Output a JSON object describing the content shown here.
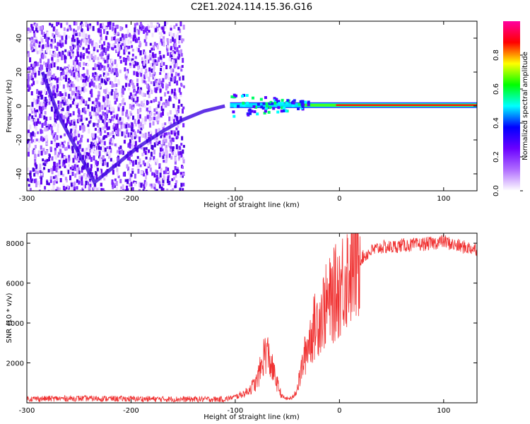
{
  "chart_data": [
    {
      "type": "heatmap",
      "title": "C2E1.2024.114.15.36.G16",
      "xlabel": "Height of straight line (km)",
      "ylabel": "Frequency (Hz)",
      "xlim": [
        -300,
        132
      ],
      "ylim": [
        -50,
        50
      ],
      "xticks": [
        "-300",
        "-200",
        "-100",
        "0",
        "100"
      ],
      "yticks": [
        "-40",
        "-20",
        "0",
        "20",
        "40"
      ],
      "colorbar": {
        "label": "Normalized spectral amplitude",
        "range": [
          0,
          1
        ],
        "ticks": [
          "0.0",
          "0.2",
          "0.4",
          "0.6",
          "0.8"
        ],
        "colors": [
          "#ffffff",
          "#b06cff",
          "#6a00ff",
          "#0000ff",
          "#00ffff",
          "#00ff00",
          "#ffff00",
          "#ff0000",
          "#ff00a0"
        ]
      },
      "features": [
        {
          "name": "carrier",
          "x_range": [
            -105,
            132
          ],
          "frequency": 0.5
        },
        {
          "name": "diagonal streak",
          "x": [
            -285,
            -270,
            -250,
            -235,
            -215,
            -195,
            -170,
            -150,
            -130,
            -110
          ],
          "y": [
            20,
            -5,
            -28,
            -45,
            -35,
            -25,
            -15,
            -8,
            -3,
            0
          ]
        }
      ]
    },
    {
      "type": "line",
      "title": "",
      "xlabel": "Height of straight line (km)",
      "ylabel": "SNR (10 * v/v)",
      "xlim": [
        -300,
        132
      ],
      "ylim": [
        0,
        8500
      ],
      "xticks": [
        "-300",
        "-200",
        "-100",
        "0",
        "100"
      ],
      "yticks": [
        "2000",
        "4000",
        "6000",
        "8000"
      ],
      "color": "#f03232",
      "series": [
        {
          "x": [
            -300,
            -250,
            -200,
            -150,
            -110,
            -100,
            -90,
            -80,
            -75,
            -72,
            -70,
            -68,
            -65,
            -62,
            -58,
            -55,
            -50,
            -45,
            -40,
            -35,
            -30,
            -25,
            -20,
            -15,
            -10,
            -5,
            0,
            5,
            10,
            15,
            20,
            25,
            30,
            40,
            50,
            60,
            70,
            80,
            90,
            100,
            110,
            120,
            132
          ],
          "y": [
            200,
            220,
            200,
            180,
            180,
            300,
            500,
            1000,
            1800,
            2500,
            2600,
            2300,
            1800,
            1300,
            700,
            300,
            200,
            250,
            800,
            2000,
            3000,
            3700,
            4200,
            4700,
            5000,
            5400,
            5800,
            6300,
            6700,
            7000,
            7200,
            7400,
            7600,
            7800,
            7800,
            7900,
            7900,
            7950,
            8000,
            8100,
            7900,
            7800,
            7700
          ]
        }
      ]
    }
  ]
}
